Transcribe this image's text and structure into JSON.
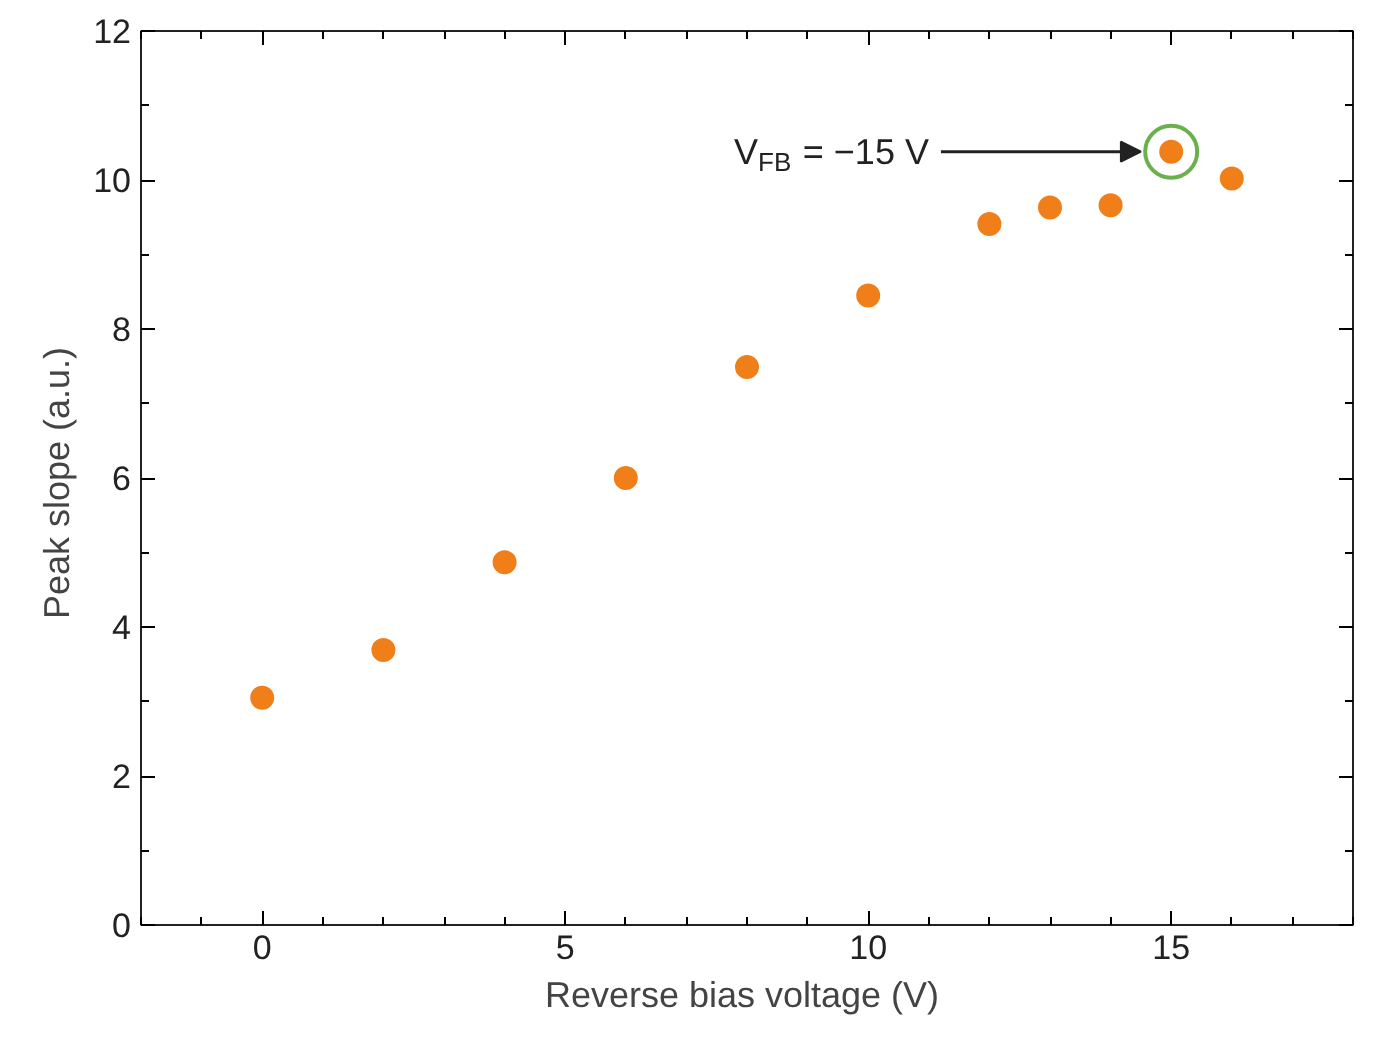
{
  "chart_data": {
    "type": "scatter",
    "xlabel": "Reverse bias voltage  (V)",
    "ylabel": "Peak slope  (a.u.)",
    "x": [
      0,
      2,
      4,
      6,
      8,
      10,
      12,
      13,
      14,
      15,
      16
    ],
    "series": [
      {
        "color": "#f07f1a",
        "values": [
          3.05,
          3.69,
          4.87,
          6.0,
          7.49,
          8.45,
          9.41,
          9.63,
          9.66,
          10.38,
          10.02
        ]
      }
    ],
    "xlim": [
      -2,
      18
    ],
    "xticks": [
      0,
      5,
      10,
      15
    ],
    "ylim": [
      0,
      12
    ],
    "yticks": [
      0,
      2,
      4,
      6,
      8,
      10,
      12
    ],
    "marker": "circle",
    "grid": false,
    "annotations": [
      "V$_{FB}$ = −15 V"
    ]
  }
}
